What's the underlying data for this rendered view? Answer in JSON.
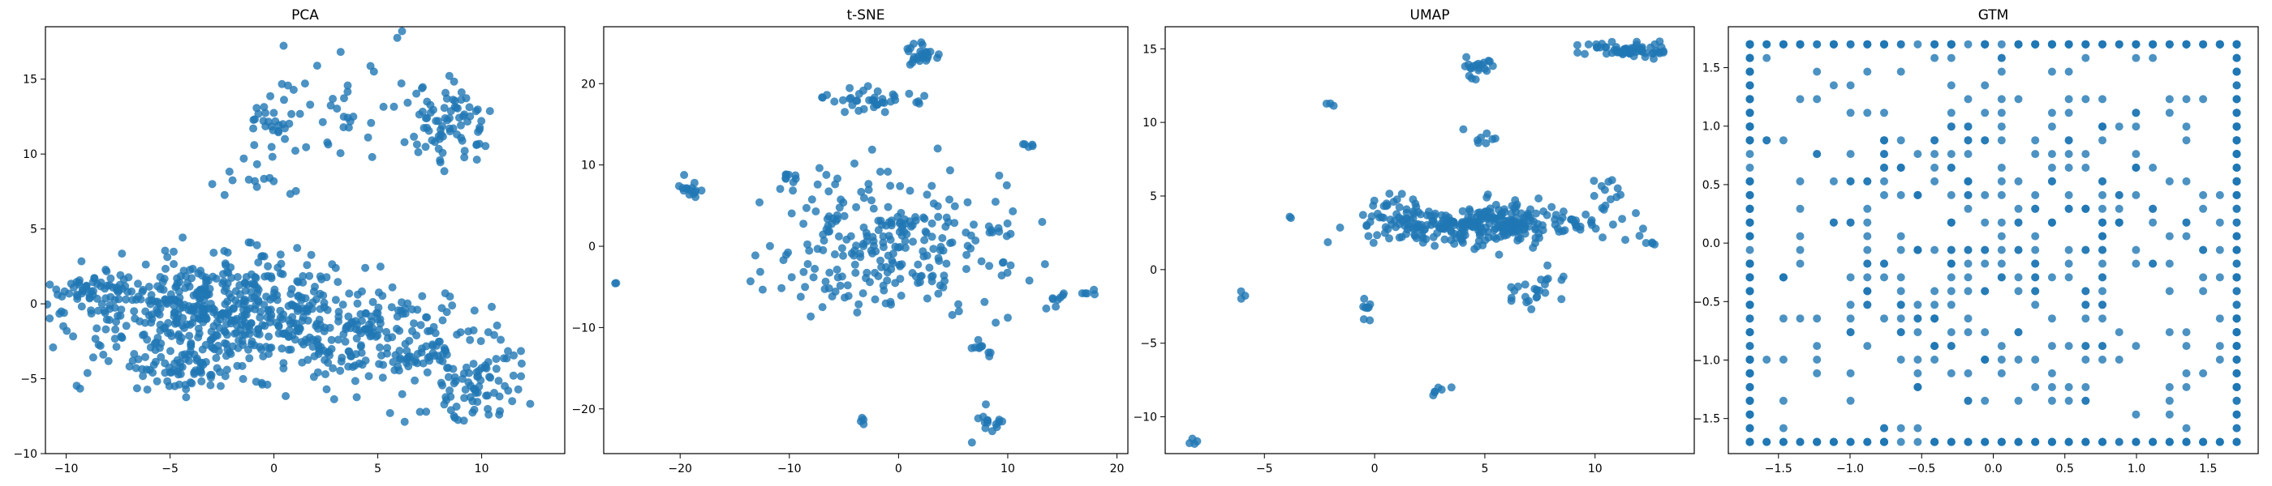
{
  "colors": {
    "marker": "#1f77b4",
    "axes": "#000000",
    "background": "#ffffff"
  },
  "chart_data": [
    {
      "type": "scatter",
      "title": "PCA",
      "xlabel": "",
      "ylabel": "",
      "xlim": [
        -11,
        14
      ],
      "ylim": [
        -10,
        18.5
      ],
      "xticks": [
        -10,
        -5,
        0,
        5,
        10
      ],
      "yticks": [
        -10,
        -5,
        0,
        5,
        10,
        15
      ],
      "clusters": [
        {
          "cx": -2.5,
          "cy": -0.5,
          "sx": 3.5,
          "sy": 1.8,
          "n": 520
        },
        {
          "cx": 5.5,
          "cy": -2.5,
          "sx": 3.0,
          "sy": 1.6,
          "n": 200
        },
        {
          "cx": 10.0,
          "cy": -5.5,
          "sx": 1.2,
          "sy": 1.2,
          "n": 70
        },
        {
          "cx": -4.5,
          "cy": -4.5,
          "sx": 0.9,
          "sy": 0.7,
          "n": 60
        },
        {
          "cx": -8.5,
          "cy": 1.0,
          "sx": 1.0,
          "sy": 0.6,
          "n": 50
        },
        {
          "cx": 8.5,
          "cy": 12.0,
          "sx": 1.0,
          "sy": 1.3,
          "n": 80
        },
        {
          "cx": 0.0,
          "cy": 12.0,
          "sx": 0.7,
          "sy": 1.2,
          "n": 30
        },
        {
          "cx": 3.5,
          "cy": 13.0,
          "sx": 2.5,
          "sy": 2.0,
          "n": 35
        },
        {
          "cx": -1.0,
          "cy": 8.0,
          "sx": 1.0,
          "sy": 0.8,
          "n": 12
        }
      ]
    },
    {
      "type": "scatter",
      "title": "t-SNE",
      "xlabel": "",
      "ylabel": "",
      "xlim": [
        -27,
        21
      ],
      "ylim": [
        -25.5,
        27
      ],
      "xticks": [
        -20,
        -10,
        0,
        10,
        20
      ],
      "yticks": [
        -20,
        -10,
        0,
        10,
        20
      ],
      "clusters": [
        {
          "cx": 0.0,
          "cy": 0.0,
          "sx": 5.5,
          "sy": 4.5,
          "n": 260
        },
        {
          "cx": -2.5,
          "cy": 18.0,
          "sx": 2.0,
          "sy": 0.8,
          "n": 40
        },
        {
          "cx": 2.0,
          "cy": 23.5,
          "sx": 1.0,
          "sy": 0.8,
          "n": 25
        },
        {
          "cx": -19.0,
          "cy": 7.0,
          "sx": 0.5,
          "sy": 0.8,
          "n": 15
        },
        {
          "cx": 8.0,
          "cy": -22.0,
          "sx": 0.8,
          "sy": 0.8,
          "n": 15
        },
        {
          "cx": 7.5,
          "cy": -12.5,
          "sx": 0.5,
          "sy": 0.6,
          "n": 10
        },
        {
          "cx": -10.0,
          "cy": 8.0,
          "sx": 0.5,
          "sy": 0.8,
          "n": 10
        },
        {
          "cx": 14.5,
          "cy": -7.0,
          "sx": 0.5,
          "sy": 0.6,
          "n": 8
        },
        {
          "cx": 12.0,
          "cy": 12.5,
          "sx": 0.3,
          "sy": 0.3,
          "n": 5
        },
        {
          "cx": 17.5,
          "cy": -6.0,
          "sx": 0.5,
          "sy": 0.3,
          "n": 5
        },
        {
          "cx": -3.5,
          "cy": -21.5,
          "sx": 0.2,
          "sy": 0.3,
          "n": 4
        },
        {
          "cx": -26.0,
          "cy": -4.5,
          "sx": 0.1,
          "sy": 0.1,
          "n": 2
        }
      ]
    },
    {
      "type": "scatter",
      "title": "UMAP",
      "xlabel": "",
      "ylabel": "",
      "xlim": [
        -9.5,
        14.5
      ],
      "ylim": [
        -12.5,
        16.5
      ],
      "xticks": [
        -5,
        0,
        5,
        10
      ],
      "yticks": [
        -10,
        -5,
        0,
        5,
        10,
        15
      ],
      "clusters": [
        {
          "cx": 4.5,
          "cy": 3.0,
          "sx": 2.6,
          "sy": 0.7,
          "n": 300
        },
        {
          "cx": 11.5,
          "cy": 14.9,
          "sx": 1.1,
          "sy": 0.3,
          "n": 60
        },
        {
          "cx": 4.5,
          "cy": 13.8,
          "sx": 0.4,
          "sy": 0.4,
          "n": 20
        },
        {
          "cx": 7.5,
          "cy": -1.5,
          "sx": 0.8,
          "sy": 0.8,
          "n": 25
        },
        {
          "cx": 10.5,
          "cy": 5.2,
          "sx": 0.4,
          "sy": 0.5,
          "n": 12
        },
        {
          "cx": 5.0,
          "cy": 9.0,
          "sx": 0.3,
          "sy": 0.3,
          "n": 8
        },
        {
          "cx": -0.3,
          "cy": -2.5,
          "sx": 0.2,
          "sy": 0.4,
          "n": 8
        },
        {
          "cx": 2.7,
          "cy": -8.3,
          "sx": 0.3,
          "sy": 0.2,
          "n": 6
        },
        {
          "cx": -8.3,
          "cy": -11.5,
          "sx": 0.2,
          "sy": 0.2,
          "n": 4
        },
        {
          "cx": -6.0,
          "cy": -1.6,
          "sx": 0.1,
          "sy": 0.2,
          "n": 3
        },
        {
          "cx": -2.0,
          "cy": 11.2,
          "sx": 0.1,
          "sy": 0.1,
          "n": 3
        },
        {
          "cx": 12.5,
          "cy": 1.7,
          "sx": 0.2,
          "sy": 0.2,
          "n": 4
        },
        {
          "cx": -3.8,
          "cy": 3.6,
          "sx": 0.05,
          "sy": 0.05,
          "n": 2
        },
        {
          "cx": 0.5,
          "cy": 4.5,
          "sx": 0.6,
          "sy": 0.4,
          "n": 15
        }
      ]
    },
    {
      "type": "scatter",
      "title": "GTM",
      "xlabel": "",
      "ylabel": "",
      "xlim": [
        -1.85,
        1.85
      ],
      "ylim": [
        -1.8,
        1.85
      ],
      "xticks": [
        -1.5,
        -1.0,
        -0.5,
        0.0,
        0.5,
        1.0,
        1.5
      ],
      "xtick_labels": [
        "−1.5",
        "−1.0",
        "−0.5",
        "0.0",
        "0.5",
        "1.0",
        "1.5"
      ],
      "yticks": [
        -1.5,
        -1.0,
        -0.5,
        0.0,
        0.5,
        1.0,
        1.5
      ],
      "ytick_labels": [
        "−1.5",
        "−1.0",
        "−0.5",
        "0.0",
        "0.5",
        "1.0",
        "1.5"
      ],
      "grid_range": [
        -1.7,
        1.7
      ],
      "grid_n": 30
    }
  ]
}
